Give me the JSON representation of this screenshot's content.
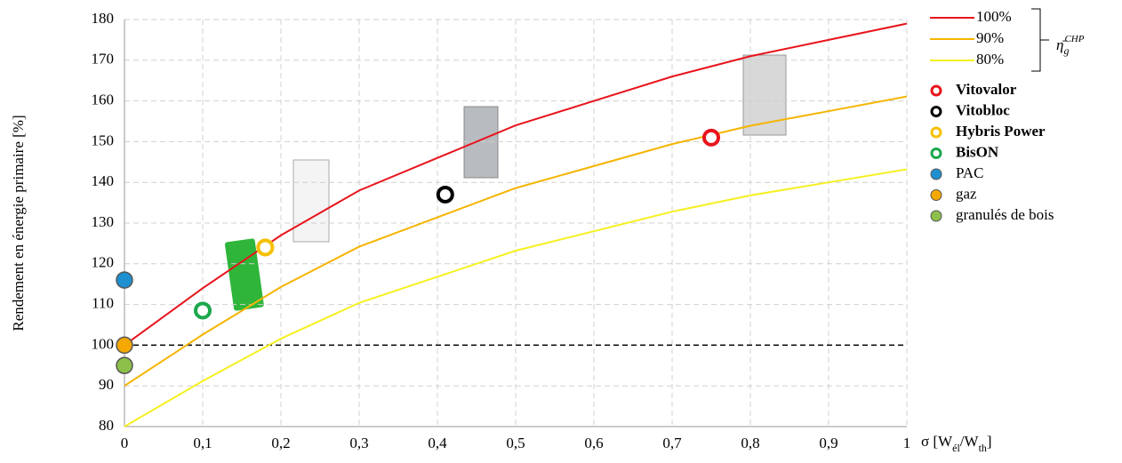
{
  "chart_data": {
    "type": "line",
    "ylabel": "Rendement en énergie primaire [%]",
    "xlabel": {
      "parts": [
        "σ [W",
        "él",
        "/W",
        "th",
        "]"
      ]
    },
    "xlim": [
      0,
      1
    ],
    "ylim": [
      80,
      180
    ],
    "xticks": [
      0,
      {
        "value": 0.1,
        "label": "0,1"
      },
      {
        "value": 0.2,
        "label": "0,2"
      },
      {
        "value": 0.3,
        "label": "0,3"
      },
      {
        "value": 0.4,
        "label": "0,4"
      },
      {
        "value": 0.5,
        "label": "0,5"
      },
      {
        "value": 0.6,
        "label": "0,6"
      },
      {
        "value": 0.7,
        "label": "0,7"
      },
      {
        "value": 0.8,
        "label": "0,8"
      },
      {
        "value": 0.9,
        "label": "0,9"
      },
      1
    ],
    "yticks": [
      80,
      90,
      100,
      110,
      120,
      130,
      140,
      150,
      160,
      170,
      180
    ],
    "grid": true,
    "reference_line": 100,
    "legend_title": {
      "symbol": "η̄",
      "sub": "g",
      "sup": "CHP"
    },
    "x": [
      0,
      0.1,
      0.2,
      0.3,
      0.4,
      0.5,
      0.6,
      0.7,
      0.8,
      0.9,
      1
    ],
    "series": [
      {
        "name": "100%",
        "color": "#e8141c",
        "values": [
          100,
          114,
          127,
          138,
          146,
          154,
          160,
          166,
          171,
          175,
          179
        ]
      },
      {
        "name": "90%",
        "color": "#f5b400",
        "values": [
          90,
          102.6,
          114.3,
          124.2,
          131.4,
          138.6,
          144,
          149.4,
          153.9,
          157.5,
          161.1
        ]
      },
      {
        "name": "80%",
        "color": "#f5f020",
        "values": [
          80,
          91.2,
          101.6,
          110.4,
          116.8,
          123.2,
          128,
          132.8,
          136.8,
          140,
          143.2
        ]
      }
    ],
    "points": [
      {
        "name": "Vitovalor",
        "color": "#e8141c",
        "filled": false,
        "bold": true,
        "x": 0.75,
        "y": 151
      },
      {
        "name": "Vitobloc",
        "color": "#000000",
        "filled": false,
        "bold": true,
        "x": 0.41,
        "y": 137
      },
      {
        "name": "Hybris Power",
        "color": "#f5c000",
        "filled": false,
        "bold": true,
        "x": 0.18,
        "y": 124
      },
      {
        "name": "BisON",
        "color": "#1aa84c",
        "filled": false,
        "bold": true,
        "x": 0.1,
        "y": 108.5
      },
      {
        "name": "PAC",
        "color": "#1e90d0",
        "filled": true,
        "bold": false,
        "x": 0,
        "y": 116
      },
      {
        "name": "gaz",
        "color": "#f5a800",
        "filled": true,
        "bold": false,
        "x": 0,
        "y": 100
      },
      {
        "name": "granulés de bois",
        "color": "#8cc04a",
        "filled": true,
        "bold": false,
        "x": 0,
        "y": 95
      }
    ]
  }
}
